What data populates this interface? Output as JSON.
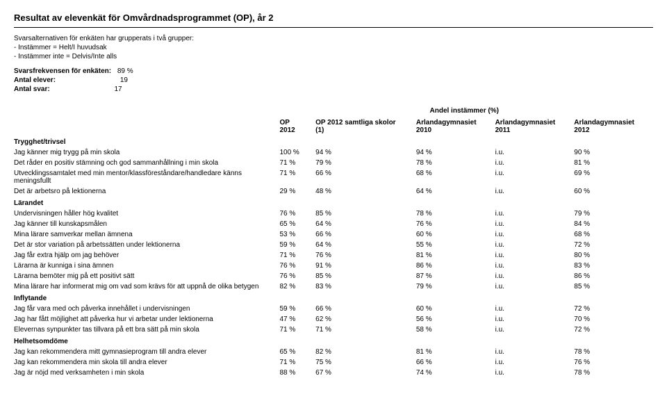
{
  "title": "Resultat av elevenkät för Omvårdnadsprogrammet (OP), år 2",
  "intro": {
    "line1": "Svarsalternativen för enkäten har grupperats i två grupper:",
    "line2": "- Instämmer = Helt/I huvudsak",
    "line3": "- Instämmer inte = Delvis/Inte alls"
  },
  "meta": {
    "freq_label": "Svarsfrekvensen för enkäten:",
    "freq_value": "89 %",
    "students_label": "Antal elever:",
    "students_value": "19",
    "answers_label": "Antal svar:",
    "answers_value": "17"
  },
  "table_header": {
    "super": "Andel instämmer (%)",
    "c1a": "OP",
    "c1b": "2012",
    "c2a": "OP 2012 samtliga skolor",
    "c2b": "(1)",
    "c3a": "Arlandagymnasiet",
    "c3b": "2010",
    "c4a": "Arlandagymnasiet",
    "c4b": "2011",
    "c5a": "Arlandagymnasiet",
    "c5b": "2012"
  },
  "sections": [
    {
      "heading": "Trygghet/trivsel",
      "rows": [
        {
          "label": "Jag känner mig trygg på min skola",
          "v": [
            "100 %",
            "94 %",
            "94 %",
            "i.u.",
            "90 %"
          ]
        },
        {
          "label": "Det råder en positiv stämning och god sammanhållning i min skola",
          "v": [
            "71 %",
            "79 %",
            "78 %",
            "i.u.",
            "81 %"
          ]
        },
        {
          "label": "Utvecklingssamtalet med min mentor/klassföreståndare/handledare känns meningsfullt",
          "v": [
            "71 %",
            "66 %",
            "68 %",
            "i.u.",
            "69 %"
          ]
        },
        {
          "label": "Det är arbetsro på lektionerna",
          "v": [
            "29 %",
            "48 %",
            "64 %",
            "i.u.",
            "60 %"
          ]
        }
      ]
    },
    {
      "heading": "Lärandet",
      "rows": [
        {
          "label": "Undervisningen håller hög kvalitet",
          "v": [
            "76 %",
            "85 %",
            "78 %",
            "i.u.",
            "79 %"
          ]
        },
        {
          "label": "Jag känner till kunskapsmålen",
          "v": [
            "65 %",
            "64 %",
            "76 %",
            "i.u.",
            "84 %"
          ]
        },
        {
          "label": "Mina lärare samverkar mellan ämnena",
          "v": [
            "53 %",
            "66 %",
            "60 %",
            "i.u.",
            "68 %"
          ]
        },
        {
          "label": "Det är stor variation på arbetssätten under lektionerna",
          "v": [
            "59 %",
            "64 %",
            "55 %",
            "i.u.",
            "72 %"
          ]
        },
        {
          "label": "Jag får extra hjälp om jag behöver",
          "v": [
            "71 %",
            "76 %",
            "81 %",
            "i.u.",
            "80 %"
          ]
        },
        {
          "label": "Lärarna är kunniga i sina ämnen",
          "v": [
            "76 %",
            "91 %",
            "86 %",
            "i.u.",
            "83 %"
          ]
        },
        {
          "label": "Lärarna bemöter mig på ett positivt sätt",
          "v": [
            "76 %",
            "85 %",
            "87 %",
            "i.u.",
            "86 %"
          ]
        },
        {
          "label": "Mina lärare har informerat mig om vad som krävs för att uppnå de olika betygen",
          "v": [
            "82 %",
            "83 %",
            "79 %",
            "i.u.",
            "85 %"
          ]
        }
      ]
    },
    {
      "heading": "Inflytande",
      "rows": [
        {
          "label": "Jag får vara med och påverka innehållet i undervisningen",
          "v": [
            "59 %",
            "66 %",
            "60 %",
            "i.u.",
            "72 %"
          ]
        },
        {
          "label": "Jag har fått möjlighet att påverka hur vi arbetar under lektionerna",
          "v": [
            "47 %",
            "62 %",
            "56 %",
            "i.u.",
            "70 %"
          ]
        },
        {
          "label": "Elevernas synpunkter tas tillvara på ett bra sätt på min skola",
          "v": [
            "71 %",
            "71 %",
            "58 %",
            "i.u.",
            "72 %"
          ]
        }
      ]
    },
    {
      "heading": "Helhetsomdöme",
      "rows": [
        {
          "label": "Jag kan rekommendera mitt gymnasieprogram till andra elever",
          "v": [
            "65 %",
            "82 %",
            "81 %",
            "i.u.",
            "78 %"
          ]
        },
        {
          "label": "Jag kan rekommendera min skola till andra elever",
          "v": [
            "71 %",
            "75 %",
            "66 %",
            "i.u.",
            "76 %"
          ]
        },
        {
          "label": "Jag är nöjd med verksamheten i min skola",
          "v": [
            "88 %",
            "67 %",
            "74 %",
            "i.u.",
            "78 %"
          ]
        }
      ]
    }
  ]
}
